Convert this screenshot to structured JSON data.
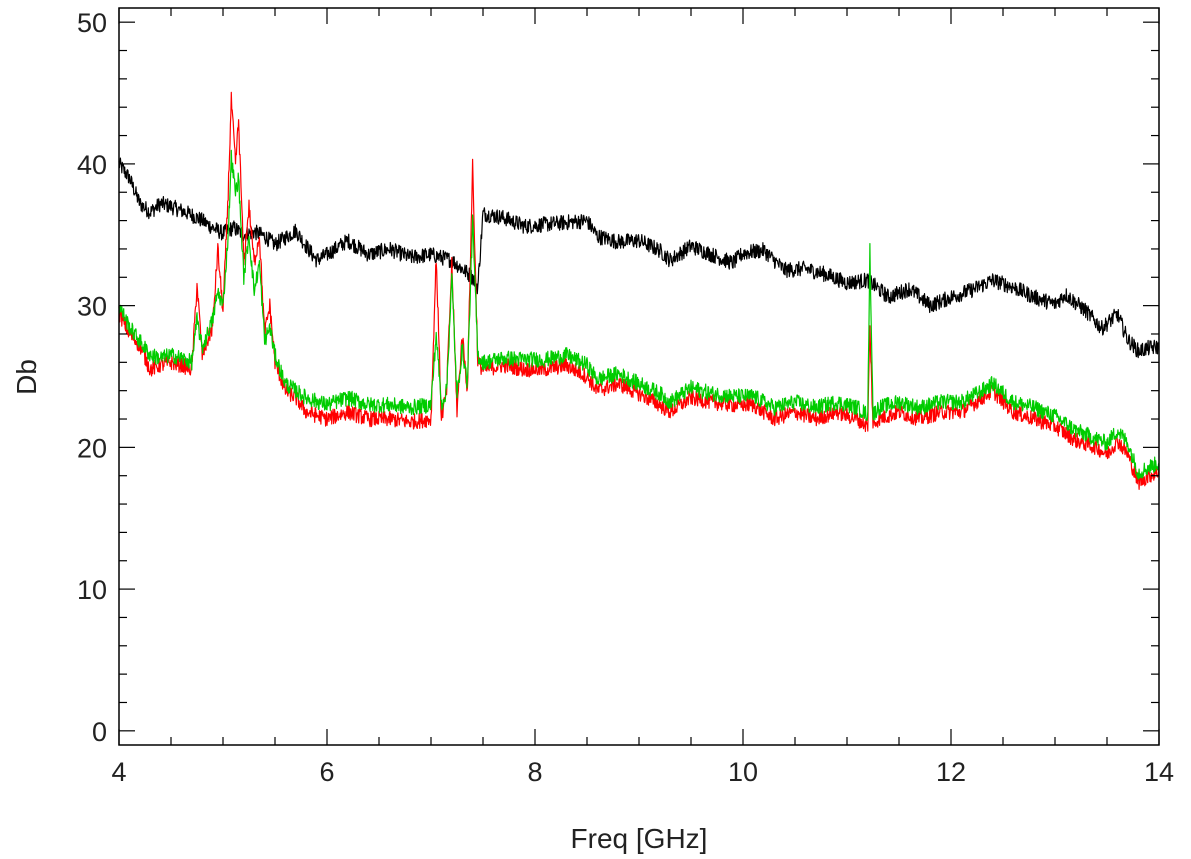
{
  "chart_data": {
    "type": "line",
    "title": "",
    "xlabel": "Freq [GHz]",
    "ylabel": "Db",
    "xlim": [
      4,
      14
    ],
    "ylim": [
      -1,
      51
    ],
    "x_ticks": [
      4,
      6,
      8,
      10,
      12,
      14
    ],
    "x_tick_labels": [
      "4",
      "6",
      "8",
      "10",
      "12",
      "14"
    ],
    "y_ticks": [
      0,
      10,
      20,
      30,
      40,
      50
    ],
    "y_tick_labels": [
      "0",
      "10",
      "20",
      "30",
      "40",
      "50"
    ],
    "grid": false,
    "legend": "none",
    "series": [
      {
        "color": "#000000",
        "x": [
          4.0,
          4.1,
          4.2,
          4.3,
          4.4,
          4.5,
          4.6,
          4.7,
          4.8,
          4.9,
          5.0,
          5.1,
          5.2,
          5.3,
          5.4,
          5.5,
          5.6,
          5.7,
          5.8,
          5.9,
          6.0,
          6.2,
          6.4,
          6.6,
          6.8,
          7.0,
          7.2,
          7.3,
          7.4,
          7.45,
          7.5,
          7.7,
          7.9,
          8.2,
          8.5,
          8.6,
          8.8,
          9.0,
          9.2,
          9.3,
          9.5,
          9.7,
          9.9,
          10.0,
          10.2,
          10.4,
          10.6,
          10.8,
          11.0,
          11.2,
          11.4,
          11.6,
          11.8,
          12.0,
          12.2,
          12.4,
          12.6,
          12.8,
          13.0,
          13.1,
          13.3,
          13.45,
          13.6,
          13.7,
          13.8,
          13.9,
          14.0
        ],
        "y": [
          40.0,
          39.0,
          37.2,
          36.6,
          37.2,
          37.0,
          36.7,
          36.4,
          36.0,
          35.5,
          35.1,
          35.5,
          35.0,
          35.2,
          34.9,
          34.3,
          34.8,
          35.3,
          34.2,
          33.2,
          33.6,
          34.6,
          33.6,
          34.0,
          33.4,
          33.6,
          33.2,
          32.6,
          32.0,
          31.3,
          36.5,
          36.2,
          35.6,
          35.8,
          36.0,
          34.9,
          34.5,
          34.6,
          33.9,
          33.2,
          34.2,
          33.6,
          33.0,
          33.7,
          33.9,
          32.5,
          32.6,
          32.2,
          31.6,
          31.8,
          30.6,
          31.2,
          30.0,
          30.6,
          31.1,
          31.8,
          31.3,
          30.6,
          30.1,
          30.8,
          29.6,
          28.4,
          29.4,
          27.6,
          26.8,
          27.0,
          27.1
        ]
      },
      {
        "color": "#ff0000",
        "x": [
          4.0,
          4.1,
          4.2,
          4.3,
          4.4,
          4.5,
          4.6,
          4.7,
          4.75,
          4.8,
          4.9,
          4.95,
          5.0,
          5.05,
          5.08,
          5.12,
          5.15,
          5.2,
          5.25,
          5.3,
          5.35,
          5.4,
          5.45,
          5.5,
          5.6,
          5.7,
          5.8,
          6.0,
          6.2,
          6.4,
          6.6,
          6.8,
          7.0,
          7.05,
          7.1,
          7.15,
          7.2,
          7.25,
          7.3,
          7.35,
          7.4,
          7.45,
          7.5,
          7.7,
          7.9,
          8.1,
          8.3,
          8.5,
          8.6,
          8.8,
          9.0,
          9.2,
          9.3,
          9.5,
          9.7,
          9.9,
          10.1,
          10.3,
          10.5,
          10.7,
          10.9,
          11.1,
          11.2,
          11.22,
          11.25,
          11.3,
          11.5,
          11.7,
          11.9,
          12.1,
          12.3,
          12.4,
          12.6,
          12.8,
          13.0,
          13.2,
          13.4,
          13.5,
          13.6,
          13.7,
          13.8,
          13.9,
          14.0
        ],
        "y": [
          29.5,
          28.0,
          27.2,
          25.5,
          25.8,
          26.0,
          25.8,
          25.5,
          31.5,
          26.5,
          28.5,
          34.0,
          29.5,
          38.0,
          44.5,
          40.0,
          43.0,
          33.0,
          37.0,
          33.0,
          35.0,
          28.0,
          30.0,
          26.0,
          24.0,
          23.5,
          22.5,
          22.0,
          22.5,
          22.0,
          22.0,
          21.8,
          22.0,
          33.5,
          22.0,
          24.0,
          33.0,
          22.5,
          28.0,
          24.0,
          40.0,
          26.0,
          25.5,
          25.8,
          25.5,
          25.5,
          25.8,
          25.0,
          24.0,
          24.5,
          23.8,
          23.0,
          22.5,
          23.5,
          23.2,
          23.0,
          23.0,
          22.0,
          22.5,
          22.0,
          22.5,
          22.0,
          21.5,
          28.5,
          21.5,
          22.0,
          22.5,
          22.0,
          22.5,
          22.5,
          23.5,
          24.0,
          22.5,
          22.0,
          21.5,
          20.5,
          20.0,
          19.5,
          20.5,
          19.5,
          17.5,
          18.0,
          18.3
        ]
      },
      {
        "color": "#00cc00",
        "x": [
          4.0,
          4.1,
          4.2,
          4.3,
          4.4,
          4.5,
          4.6,
          4.7,
          4.75,
          4.8,
          4.9,
          4.95,
          5.0,
          5.05,
          5.08,
          5.12,
          5.15,
          5.2,
          5.25,
          5.3,
          5.35,
          5.4,
          5.45,
          5.5,
          5.6,
          5.7,
          5.8,
          6.0,
          6.2,
          6.4,
          6.6,
          6.8,
          7.0,
          7.05,
          7.1,
          7.15,
          7.2,
          7.25,
          7.3,
          7.35,
          7.4,
          7.45,
          7.5,
          7.7,
          7.9,
          8.1,
          8.3,
          8.5,
          8.6,
          8.8,
          9.0,
          9.2,
          9.3,
          9.5,
          9.7,
          9.9,
          10.1,
          10.3,
          10.5,
          10.7,
          10.9,
          11.1,
          11.2,
          11.22,
          11.25,
          11.3,
          11.5,
          11.7,
          11.9,
          12.1,
          12.3,
          12.4,
          12.6,
          12.8,
          13.0,
          13.2,
          13.4,
          13.5,
          13.6,
          13.7,
          13.8,
          13.9,
          14.0
        ],
        "y": [
          30.0,
          28.5,
          27.5,
          26.5,
          26.3,
          26.5,
          26.3,
          26.0,
          29.0,
          27.0,
          29.0,
          31.0,
          30.0,
          35.0,
          40.5,
          38.0,
          39.0,
          32.0,
          35.0,
          31.0,
          33.0,
          27.5,
          28.5,
          26.5,
          24.5,
          24.0,
          23.5,
          23.0,
          23.5,
          23.0,
          23.0,
          22.8,
          23.0,
          28.0,
          23.0,
          24.0,
          32.0,
          23.5,
          27.0,
          24.5,
          36.0,
          26.5,
          26.0,
          26.3,
          26.2,
          26.2,
          26.5,
          25.8,
          24.8,
          25.2,
          24.5,
          23.8,
          23.2,
          24.2,
          23.8,
          23.6,
          23.6,
          22.8,
          23.2,
          22.8,
          23.2,
          22.8,
          22.3,
          34.0,
          22.3,
          22.8,
          23.2,
          22.8,
          23.2,
          23.2,
          24.0,
          24.5,
          23.2,
          22.8,
          22.2,
          21.2,
          20.6,
          20.3,
          21.2,
          20.3,
          18.2,
          18.6,
          18.9
        ]
      }
    ]
  }
}
